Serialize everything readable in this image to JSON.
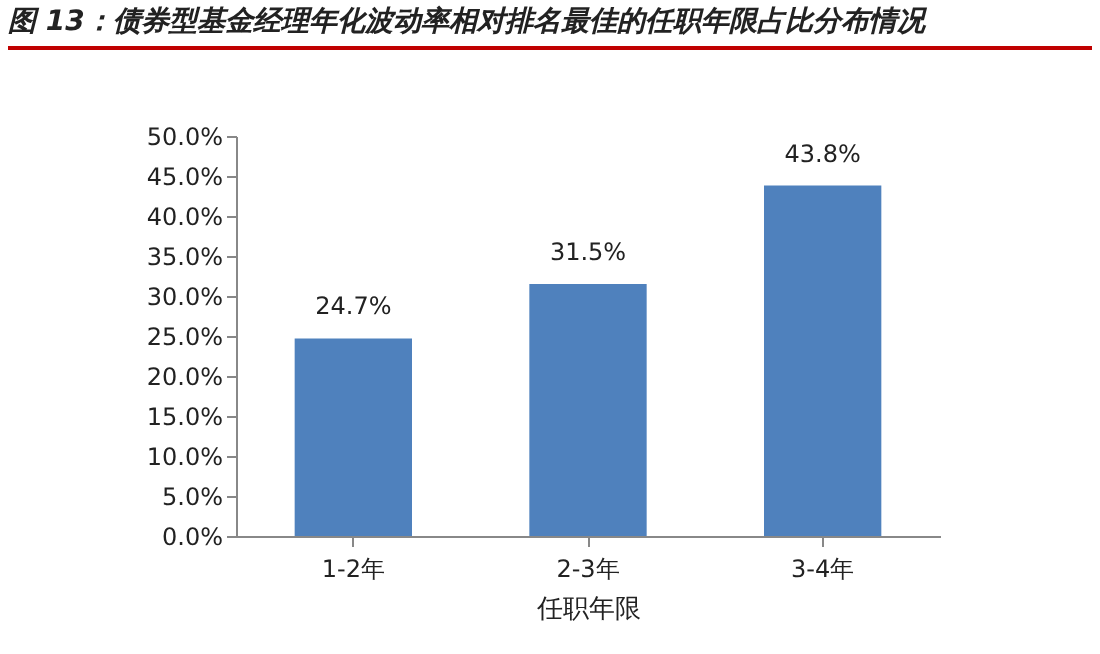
{
  "chart_data": {
    "type": "bar",
    "title": "图 13：债券型基金经理年化波动率相对排名最佳的任职年限占比分布情况",
    "xlabel": "任职年限",
    "categories": [
      "1-2年",
      "2-3年",
      "3-4年"
    ],
    "values": [
      24.7,
      31.5,
      43.8
    ],
    "value_labels": [
      "24.7%",
      "31.5%",
      "43.8%"
    ],
    "color": "#4f81bd",
    "ylim": [
      0,
      50
    ],
    "yticks": [
      {
        "value": 0,
        "label": "0.0%"
      },
      {
        "value": 5,
        "label": "5.0%"
      },
      {
        "value": 10,
        "label": "10.0%"
      },
      {
        "value": 15,
        "label": "15.0%"
      },
      {
        "value": 20,
        "label": "20.0%"
      },
      {
        "value": 25,
        "label": "25.0%"
      },
      {
        "value": 30,
        "label": "30.0%"
      },
      {
        "value": 35,
        "label": "35.0%"
      },
      {
        "value": 40,
        "label": "40.0%"
      },
      {
        "value": 45,
        "label": "45.0%"
      },
      {
        "value": 50,
        "label": "50.0%"
      }
    ],
    "grid": false
  }
}
